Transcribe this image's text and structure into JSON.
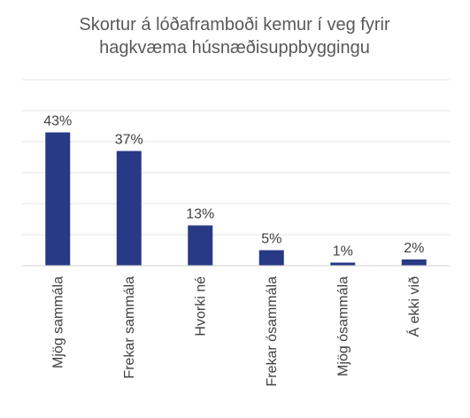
{
  "chart_data": {
    "type": "bar",
    "title_lines": [
      "Skortur á lóðaframboði kemur í veg fyrir",
      "hagkvæma húsnæðisuppbyggingu"
    ],
    "categories": [
      "Mjög sammála",
      "Frekar sammála",
      "Hvorki né",
      "Frekar ósammála",
      "Mjög ósammála",
      "Á ekki við"
    ],
    "values": [
      43,
      37,
      13,
      5,
      1,
      2
    ],
    "data_labels": [
      "43%",
      "37%",
      "13%",
      "5%",
      "1%",
      "2%"
    ],
    "ylim": [
      0,
      60
    ],
    "grid": true,
    "legend": "none",
    "bar_color": "#283a85"
  }
}
